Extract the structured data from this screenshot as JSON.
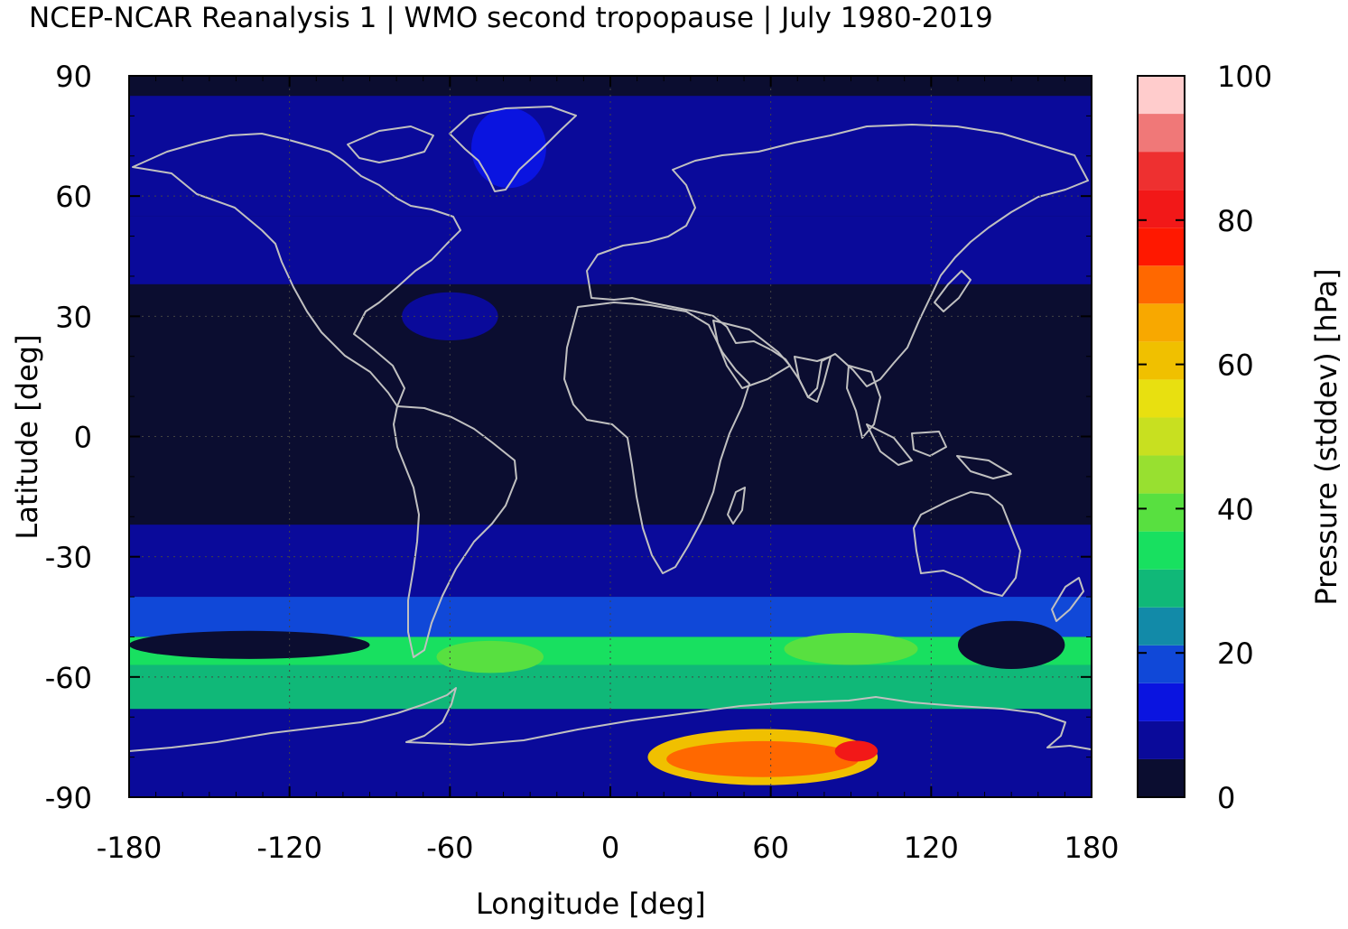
{
  "title": "NCEP-NCAR Reanalysis 1 | WMO second tropopause | July 1980-2019",
  "chart_data": {
    "type": "heatmap",
    "title": "NCEP-NCAR Reanalysis 1 | WMO second tropopause | July 1980-2019",
    "xlabel": "Longitude [deg]",
    "ylabel": "Latitude [deg]",
    "colorbar_label": "Pressure (stddev) [hPa]",
    "xlim": [
      -180,
      180
    ],
    "ylim": [
      -90,
      90
    ],
    "xticks": [
      "-180",
      "-120",
      "-60",
      "0",
      "60",
      "120",
      "180"
    ],
    "yticks": [
      "90",
      "60",
      "30",
      "0",
      "-30",
      "-60",
      "-90"
    ],
    "colorbar_ticks": [
      "100",
      "80",
      "60",
      "40",
      "20",
      "0"
    ],
    "colorbar_range": [
      0,
      100
    ],
    "colorbar_colors": [
      "#0b0d30",
      "#0a0a9a",
      "#0a14e0",
      "#1048d8",
      "#128aa8",
      "#10b878",
      "#18e060",
      "#58e040",
      "#98e030",
      "#c8e020",
      "#e8e010",
      "#f0c000",
      "#f8a800",
      "#ff6800",
      "#ff1800",
      "#f21818",
      "#ee3030",
      "#f07878",
      "#ffcccc"
    ],
    "background_color": "#0b0d30",
    "coastline_color": "#c0c0c0",
    "zonal_bands": [
      {
        "lat_min": 55,
        "lat_max": 85,
        "value": 10
      },
      {
        "lat_min": 38,
        "lat_max": 55,
        "value": 7
      },
      {
        "lat_min": -40,
        "lat_max": -22,
        "value": 10
      },
      {
        "lat_min": -50,
        "lat_max": -40,
        "value": 20
      },
      {
        "lat_min": -57,
        "lat_max": -50,
        "value": 33
      },
      {
        "lat_min": -68,
        "lat_max": -57,
        "value": 28
      },
      {
        "lat_min": -90,
        "lat_max": -68,
        "value": 10
      }
    ],
    "features": [
      {
        "name": "antarctic-maximum-outer",
        "lon": 57,
        "lat": -80,
        "half_lon": 43,
        "half_lat": 7,
        "value": 58
      },
      {
        "name": "antarctic-maximum-mid",
        "lon": 57,
        "lat": -80.5,
        "half_lon": 36,
        "half_lat": 4.5,
        "value": 72
      },
      {
        "name": "antarctic-maximum-core",
        "lon": 92,
        "lat": -78.5,
        "half_lon": 8,
        "half_lat": 2.6,
        "value": 82
      },
      {
        "name": "pacific-quiet-zone",
        "lon": -135,
        "lat": -52,
        "half_lon": 45,
        "half_lat": 3.5,
        "value": 3
      },
      {
        "name": "tasman-quiet-zone",
        "lon": 150,
        "lat": -52,
        "half_lon": 20,
        "half_lat": 6,
        "value": 3
      },
      {
        "name": "south-atlantic-peak",
        "lon": -45,
        "lat": -55,
        "half_lon": 20,
        "half_lat": 4,
        "value": 42
      },
      {
        "name": "indian-ocean-peak",
        "lon": 90,
        "lat": -53,
        "half_lon": 25,
        "half_lat": 4,
        "value": 42
      },
      {
        "name": "greenland-low",
        "lon": -38,
        "lat": 72,
        "half_lon": 14,
        "half_lat": 10,
        "value": 15
      },
      {
        "name": "atlantic-subtropics",
        "lon": -60,
        "lat": 30,
        "half_lon": 18,
        "half_lat": 6,
        "value": 10
      }
    ]
  }
}
